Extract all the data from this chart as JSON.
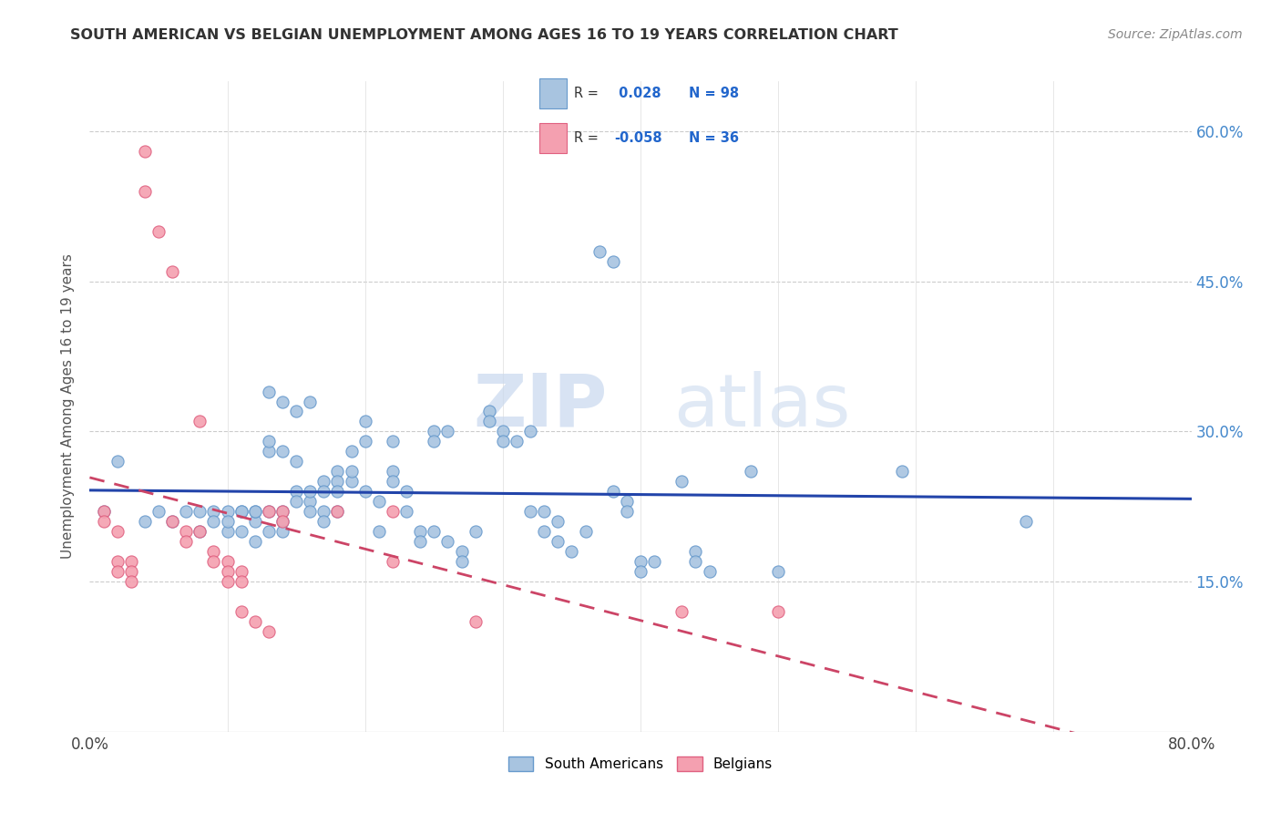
{
  "title": "SOUTH AMERICAN VS BELGIAN UNEMPLOYMENT AMONG AGES 16 TO 19 YEARS CORRELATION CHART",
  "source": "Source: ZipAtlas.com",
  "ylabel": "Unemployment Among Ages 16 to 19 years",
  "xlim": [
    0.0,
    0.8
  ],
  "ylim": [
    0.0,
    0.65
  ],
  "sa_color": "#a8c4e0",
  "sa_edge": "#6699cc",
  "belgian_color": "#f4a0b0",
  "belgian_edge": "#e06080",
  "sa_R": 0.028,
  "sa_N": 98,
  "belgian_R": -0.058,
  "belgian_N": 36,
  "trend_sa_color": "#2244aa",
  "trend_belgian_color": "#cc4466",
  "watermark_zip": "ZIP",
  "watermark_atlas": "atlas",
  "background_color": "#ffffff",
  "legend_label_sa": "South Americans",
  "legend_label_belgian": "Belgians",
  "sa_points": [
    [
      0.01,
      0.22
    ],
    [
      0.02,
      0.27
    ],
    [
      0.04,
      0.21
    ],
    [
      0.05,
      0.22
    ],
    [
      0.06,
      0.21
    ],
    [
      0.07,
      0.22
    ],
    [
      0.08,
      0.2
    ],
    [
      0.08,
      0.22
    ],
    [
      0.09,
      0.22
    ],
    [
      0.09,
      0.21
    ],
    [
      0.1,
      0.2
    ],
    [
      0.1,
      0.22
    ],
    [
      0.1,
      0.21
    ],
    [
      0.11,
      0.22
    ],
    [
      0.11,
      0.2
    ],
    [
      0.11,
      0.22
    ],
    [
      0.12,
      0.21
    ],
    [
      0.12,
      0.22
    ],
    [
      0.12,
      0.19
    ],
    [
      0.12,
      0.22
    ],
    [
      0.13,
      0.22
    ],
    [
      0.13,
      0.2
    ],
    [
      0.13,
      0.28
    ],
    [
      0.13,
      0.29
    ],
    [
      0.13,
      0.34
    ],
    [
      0.14,
      0.21
    ],
    [
      0.14,
      0.2
    ],
    [
      0.14,
      0.22
    ],
    [
      0.14,
      0.28
    ],
    [
      0.14,
      0.33
    ],
    [
      0.15,
      0.24
    ],
    [
      0.15,
      0.23
    ],
    [
      0.15,
      0.27
    ],
    [
      0.15,
      0.32
    ],
    [
      0.16,
      0.23
    ],
    [
      0.16,
      0.24
    ],
    [
      0.16,
      0.22
    ],
    [
      0.16,
      0.33
    ],
    [
      0.17,
      0.25
    ],
    [
      0.17,
      0.24
    ],
    [
      0.17,
      0.22
    ],
    [
      0.17,
      0.21
    ],
    [
      0.18,
      0.26
    ],
    [
      0.18,
      0.25
    ],
    [
      0.18,
      0.24
    ],
    [
      0.18,
      0.22
    ],
    [
      0.19,
      0.25
    ],
    [
      0.19,
      0.26
    ],
    [
      0.19,
      0.28
    ],
    [
      0.2,
      0.24
    ],
    [
      0.2,
      0.29
    ],
    [
      0.2,
      0.31
    ],
    [
      0.21,
      0.23
    ],
    [
      0.21,
      0.2
    ],
    [
      0.22,
      0.29
    ],
    [
      0.22,
      0.26
    ],
    [
      0.22,
      0.25
    ],
    [
      0.23,
      0.24
    ],
    [
      0.23,
      0.22
    ],
    [
      0.24,
      0.2
    ],
    [
      0.24,
      0.19
    ],
    [
      0.25,
      0.3
    ],
    [
      0.25,
      0.29
    ],
    [
      0.25,
      0.2
    ],
    [
      0.26,
      0.3
    ],
    [
      0.26,
      0.19
    ],
    [
      0.27,
      0.18
    ],
    [
      0.27,
      0.17
    ],
    [
      0.28,
      0.2
    ],
    [
      0.29,
      0.32
    ],
    [
      0.29,
      0.31
    ],
    [
      0.3,
      0.3
    ],
    [
      0.3,
      0.29
    ],
    [
      0.31,
      0.29
    ],
    [
      0.32,
      0.3
    ],
    [
      0.32,
      0.22
    ],
    [
      0.33,
      0.22
    ],
    [
      0.33,
      0.2
    ],
    [
      0.34,
      0.21
    ],
    [
      0.34,
      0.19
    ],
    [
      0.35,
      0.18
    ],
    [
      0.36,
      0.2
    ],
    [
      0.37,
      0.48
    ],
    [
      0.38,
      0.47
    ],
    [
      0.38,
      0.24
    ],
    [
      0.39,
      0.23
    ],
    [
      0.39,
      0.22
    ],
    [
      0.4,
      0.17
    ],
    [
      0.4,
      0.16
    ],
    [
      0.41,
      0.17
    ],
    [
      0.43,
      0.25
    ],
    [
      0.44,
      0.18
    ],
    [
      0.44,
      0.17
    ],
    [
      0.45,
      0.16
    ],
    [
      0.48,
      0.26
    ],
    [
      0.5,
      0.16
    ],
    [
      0.59,
      0.26
    ],
    [
      0.68,
      0.21
    ]
  ],
  "belgian_points": [
    [
      0.01,
      0.22
    ],
    [
      0.01,
      0.21
    ],
    [
      0.02,
      0.2
    ],
    [
      0.02,
      0.17
    ],
    [
      0.02,
      0.16
    ],
    [
      0.03,
      0.17
    ],
    [
      0.03,
      0.16
    ],
    [
      0.03,
      0.15
    ],
    [
      0.04,
      0.58
    ],
    [
      0.04,
      0.54
    ],
    [
      0.05,
      0.5
    ],
    [
      0.06,
      0.46
    ],
    [
      0.06,
      0.21
    ],
    [
      0.07,
      0.2
    ],
    [
      0.07,
      0.19
    ],
    [
      0.08,
      0.31
    ],
    [
      0.08,
      0.2
    ],
    [
      0.09,
      0.18
    ],
    [
      0.09,
      0.17
    ],
    [
      0.1,
      0.17
    ],
    [
      0.1,
      0.16
    ],
    [
      0.1,
      0.15
    ],
    [
      0.11,
      0.16
    ],
    [
      0.11,
      0.15
    ],
    [
      0.11,
      0.12
    ],
    [
      0.12,
      0.11
    ],
    [
      0.13,
      0.22
    ],
    [
      0.13,
      0.1
    ],
    [
      0.14,
      0.22
    ],
    [
      0.14,
      0.21
    ],
    [
      0.18,
      0.22
    ],
    [
      0.22,
      0.22
    ],
    [
      0.22,
      0.17
    ],
    [
      0.28,
      0.11
    ],
    [
      0.43,
      0.12
    ],
    [
      0.5,
      0.12
    ]
  ]
}
